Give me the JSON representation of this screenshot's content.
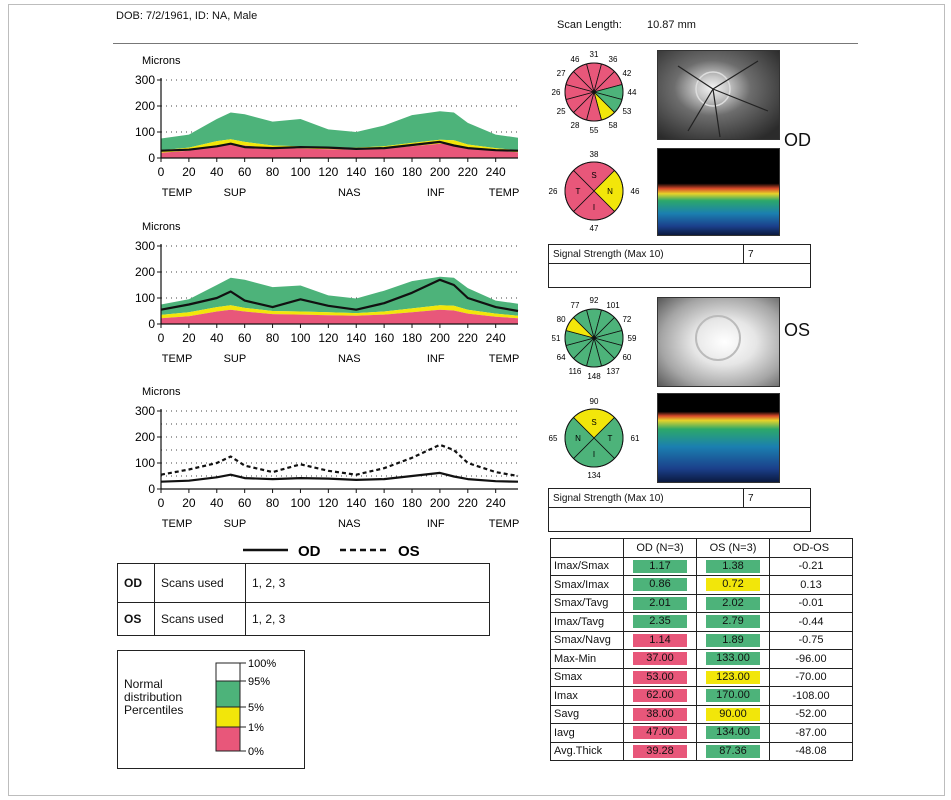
{
  "header": {
    "patient": "DOB: 7/2/1961, ID: NA, Male",
    "scan_length_label": "Scan Length:",
    "scan_length_value": "10.87 mm"
  },
  "colors": {
    "normal_green": "#4db37a",
    "borderline_yellow": "#f2e60a",
    "abnormal_red": "#e8577a",
    "od_line": "#111111",
    "os_line": "#222222"
  },
  "chart_data": [
    {
      "type": "area",
      "ylabel": "Microns",
      "ylim": [
        0,
        300
      ],
      "yticks": [
        0,
        100,
        200,
        300
      ],
      "xlim": [
        0,
        256
      ],
      "xticks": [
        0,
        20,
        40,
        60,
        80,
        100,
        120,
        140,
        160,
        180,
        200,
        220,
        240
      ],
      "region_labels": [
        "TEMP",
        "SUP",
        "NAS",
        "INF",
        "TEMP"
      ],
      "x": [
        0,
        20,
        40,
        50,
        60,
        80,
        100,
        120,
        140,
        160,
        180,
        200,
        210,
        220,
        240,
        256
      ],
      "bands": {
        "p5": [
          30,
          40,
          65,
          72,
          62,
          48,
          45,
          42,
          40,
          45,
          58,
          70,
          68,
          52,
          38,
          30
        ],
        "p1": [
          20,
          28,
          48,
          55,
          48,
          38,
          36,
          34,
          32,
          36,
          45,
          55,
          52,
          40,
          28,
          22
        ],
        "p95": [
          75,
          90,
          150,
          175,
          168,
          140,
          150,
          110,
          100,
          125,
          165,
          180,
          175,
          135,
          90,
          78
        ]
      },
      "series": [
        {
          "name": "OD",
          "values": [
            28,
            32,
            45,
            55,
            42,
            38,
            42,
            40,
            35,
            38,
            50,
            62,
            48,
            38,
            30,
            28
          ]
        }
      ]
    },
    {
      "type": "area",
      "ylabel": "Microns",
      "ylim": [
        0,
        300
      ],
      "yticks": [
        0,
        100,
        200,
        300
      ],
      "xlim": [
        0,
        256
      ],
      "xticks": [
        0,
        20,
        40,
        60,
        80,
        100,
        120,
        140,
        160,
        180,
        200,
        220,
        240
      ],
      "region_labels": [
        "TEMP",
        "SUP",
        "NAS",
        "INF",
        "TEMP"
      ],
      "x": [
        0,
        20,
        40,
        50,
        60,
        80,
        100,
        120,
        140,
        160,
        180,
        200,
        210,
        220,
        240,
        256
      ],
      "bands": {
        "p5": [
          35,
          45,
          65,
          72,
          62,
          50,
          48,
          45,
          42,
          48,
          60,
          72,
          70,
          55,
          40,
          32
        ],
        "p1": [
          22,
          30,
          48,
          55,
          48,
          38,
          36,
          34,
          32,
          36,
          45,
          55,
          52,
          40,
          28,
          22
        ],
        "p95": [
          75,
          95,
          150,
          178,
          170,
          142,
          148,
          110,
          98,
          128,
          165,
          182,
          178,
          138,
          90,
          78
        ]
      },
      "series": [
        {
          "name": "OS",
          "values": [
            55,
            75,
            100,
            125,
            90,
            65,
            95,
            70,
            55,
            80,
            120,
            170,
            150,
            100,
            65,
            50
          ]
        }
      ]
    },
    {
      "type": "line",
      "ylabel": "Microns",
      "ylim": [
        0,
        300
      ],
      "yticks": [
        0,
        100,
        200,
        300
      ],
      "xlim": [
        0,
        256
      ],
      "xticks": [
        0,
        20,
        40,
        60,
        80,
        100,
        120,
        140,
        160,
        180,
        200,
        220,
        240
      ],
      "region_labels": [
        "TEMP",
        "SUP",
        "NAS",
        "INF",
        "TEMP"
      ],
      "x": [
        0,
        20,
        40,
        50,
        60,
        80,
        100,
        120,
        140,
        160,
        180,
        200,
        210,
        220,
        240,
        256
      ],
      "series": [
        {
          "name": "OD",
          "style": "solid",
          "values": [
            28,
            32,
            45,
            55,
            42,
            38,
            42,
            40,
            35,
            38,
            50,
            62,
            48,
            38,
            30,
            28
          ]
        },
        {
          "name": "OS",
          "style": "dashed",
          "values": [
            55,
            75,
            100,
            125,
            90,
            65,
            95,
            70,
            55,
            80,
            120,
            170,
            150,
            100,
            65,
            50
          ]
        }
      ],
      "legend": [
        "OD",
        "OS"
      ]
    }
  ],
  "clock_od": {
    "values": [
      "31",
      "36",
      "42",
      "44",
      "53",
      "58",
      "55",
      "28",
      "25",
      "26",
      "27",
      "46"
    ],
    "colors": [
      "red",
      "red",
      "red",
      "green",
      "green",
      "yellow",
      "red",
      "red",
      "red",
      "red",
      "red",
      "red"
    ]
  },
  "quad_od": {
    "superior": "38",
    "temporal_side": "26",
    "nasal_side": "46",
    "inferior": "47",
    "letters": [
      "S",
      "N",
      "I",
      "T"
    ],
    "colors": {
      "S": "red",
      "N": "yellow",
      "I": "red",
      "T": "red"
    }
  },
  "clock_os": {
    "values": [
      "92",
      "101",
      "72",
      "59",
      "60",
      "137",
      "148",
      "116",
      "64",
      "51",
      "80",
      "77"
    ],
    "colors": [
      "green",
      "green",
      "green",
      "green",
      "green",
      "green",
      "green",
      "green",
      "green",
      "green",
      "yellow",
      "green"
    ]
  },
  "quad_os": {
    "superior": "90",
    "temporal_side": "65",
    "nasal_side": "61",
    "inferior": "134",
    "letters": [
      "S",
      "T",
      "I",
      "N"
    ],
    "colors": {
      "S": "yellow",
      "T": "green",
      "I": "green",
      "N": "green"
    }
  },
  "eye_labels": {
    "od": "OD",
    "os": "OS"
  },
  "signal": {
    "od_label": "Signal Strength (Max 10)",
    "od_value": "7",
    "os_label": "Signal Strength (Max 10)",
    "os_value": "7"
  },
  "scans": [
    {
      "eye": "OD",
      "label": "Scans used",
      "value": "1, 2, 3"
    },
    {
      "eye": "OS",
      "label": "Scans used",
      "value": "1, 2, 3"
    }
  ],
  "legend_dist": {
    "title_lines": [
      "Normal",
      "distribution",
      "Percentiles"
    ],
    "ticks": [
      "100%",
      "95%",
      "5%",
      "1%",
      "0%"
    ]
  },
  "params": {
    "headers": [
      "",
      "OD (N=3)",
      "OS (N=3)",
      "OD-OS"
    ],
    "rows": [
      {
        "label": "Imax/Smax",
        "od": "1.17",
        "os": "1.38",
        "diff": "-0.21",
        "od_c": "green",
        "os_c": "green"
      },
      {
        "label": "Smax/Imax",
        "od": "0.86",
        "os": "0.72",
        "diff": "0.13",
        "od_c": "green",
        "os_c": "yellow"
      },
      {
        "label": "Smax/Tavg",
        "od": "2.01",
        "os": "2.02",
        "diff": "-0.01",
        "od_c": "green",
        "os_c": "green"
      },
      {
        "label": "Imax/Tavg",
        "od": "2.35",
        "os": "2.79",
        "diff": "-0.44",
        "od_c": "green",
        "os_c": "green"
      },
      {
        "label": "Smax/Navg",
        "od": "1.14",
        "os": "1.89",
        "diff": "-0.75",
        "od_c": "red",
        "os_c": "green"
      },
      {
        "label": "Max-Min",
        "od": "37.00",
        "os": "133.00",
        "diff": "-96.00",
        "od_c": "red",
        "os_c": "green"
      },
      {
        "label": "Smax",
        "od": "53.00",
        "os": "123.00",
        "diff": "-70.00",
        "od_c": "red",
        "os_c": "yellow"
      },
      {
        "label": "Imax",
        "od": "62.00",
        "os": "170.00",
        "diff": "-108.00",
        "od_c": "red",
        "os_c": "green"
      },
      {
        "label": "Savg",
        "od": "38.00",
        "os": "90.00",
        "diff": "-52.00",
        "od_c": "red",
        "os_c": "yellow"
      },
      {
        "label": "Iavg",
        "od": "47.00",
        "os": "134.00",
        "diff": "-87.00",
        "od_c": "red",
        "os_c": "green"
      },
      {
        "label": "Avg.Thick",
        "od": "39.28",
        "os": "87.36",
        "diff": "-48.08",
        "od_c": "red",
        "os_c": "green"
      }
    ]
  }
}
